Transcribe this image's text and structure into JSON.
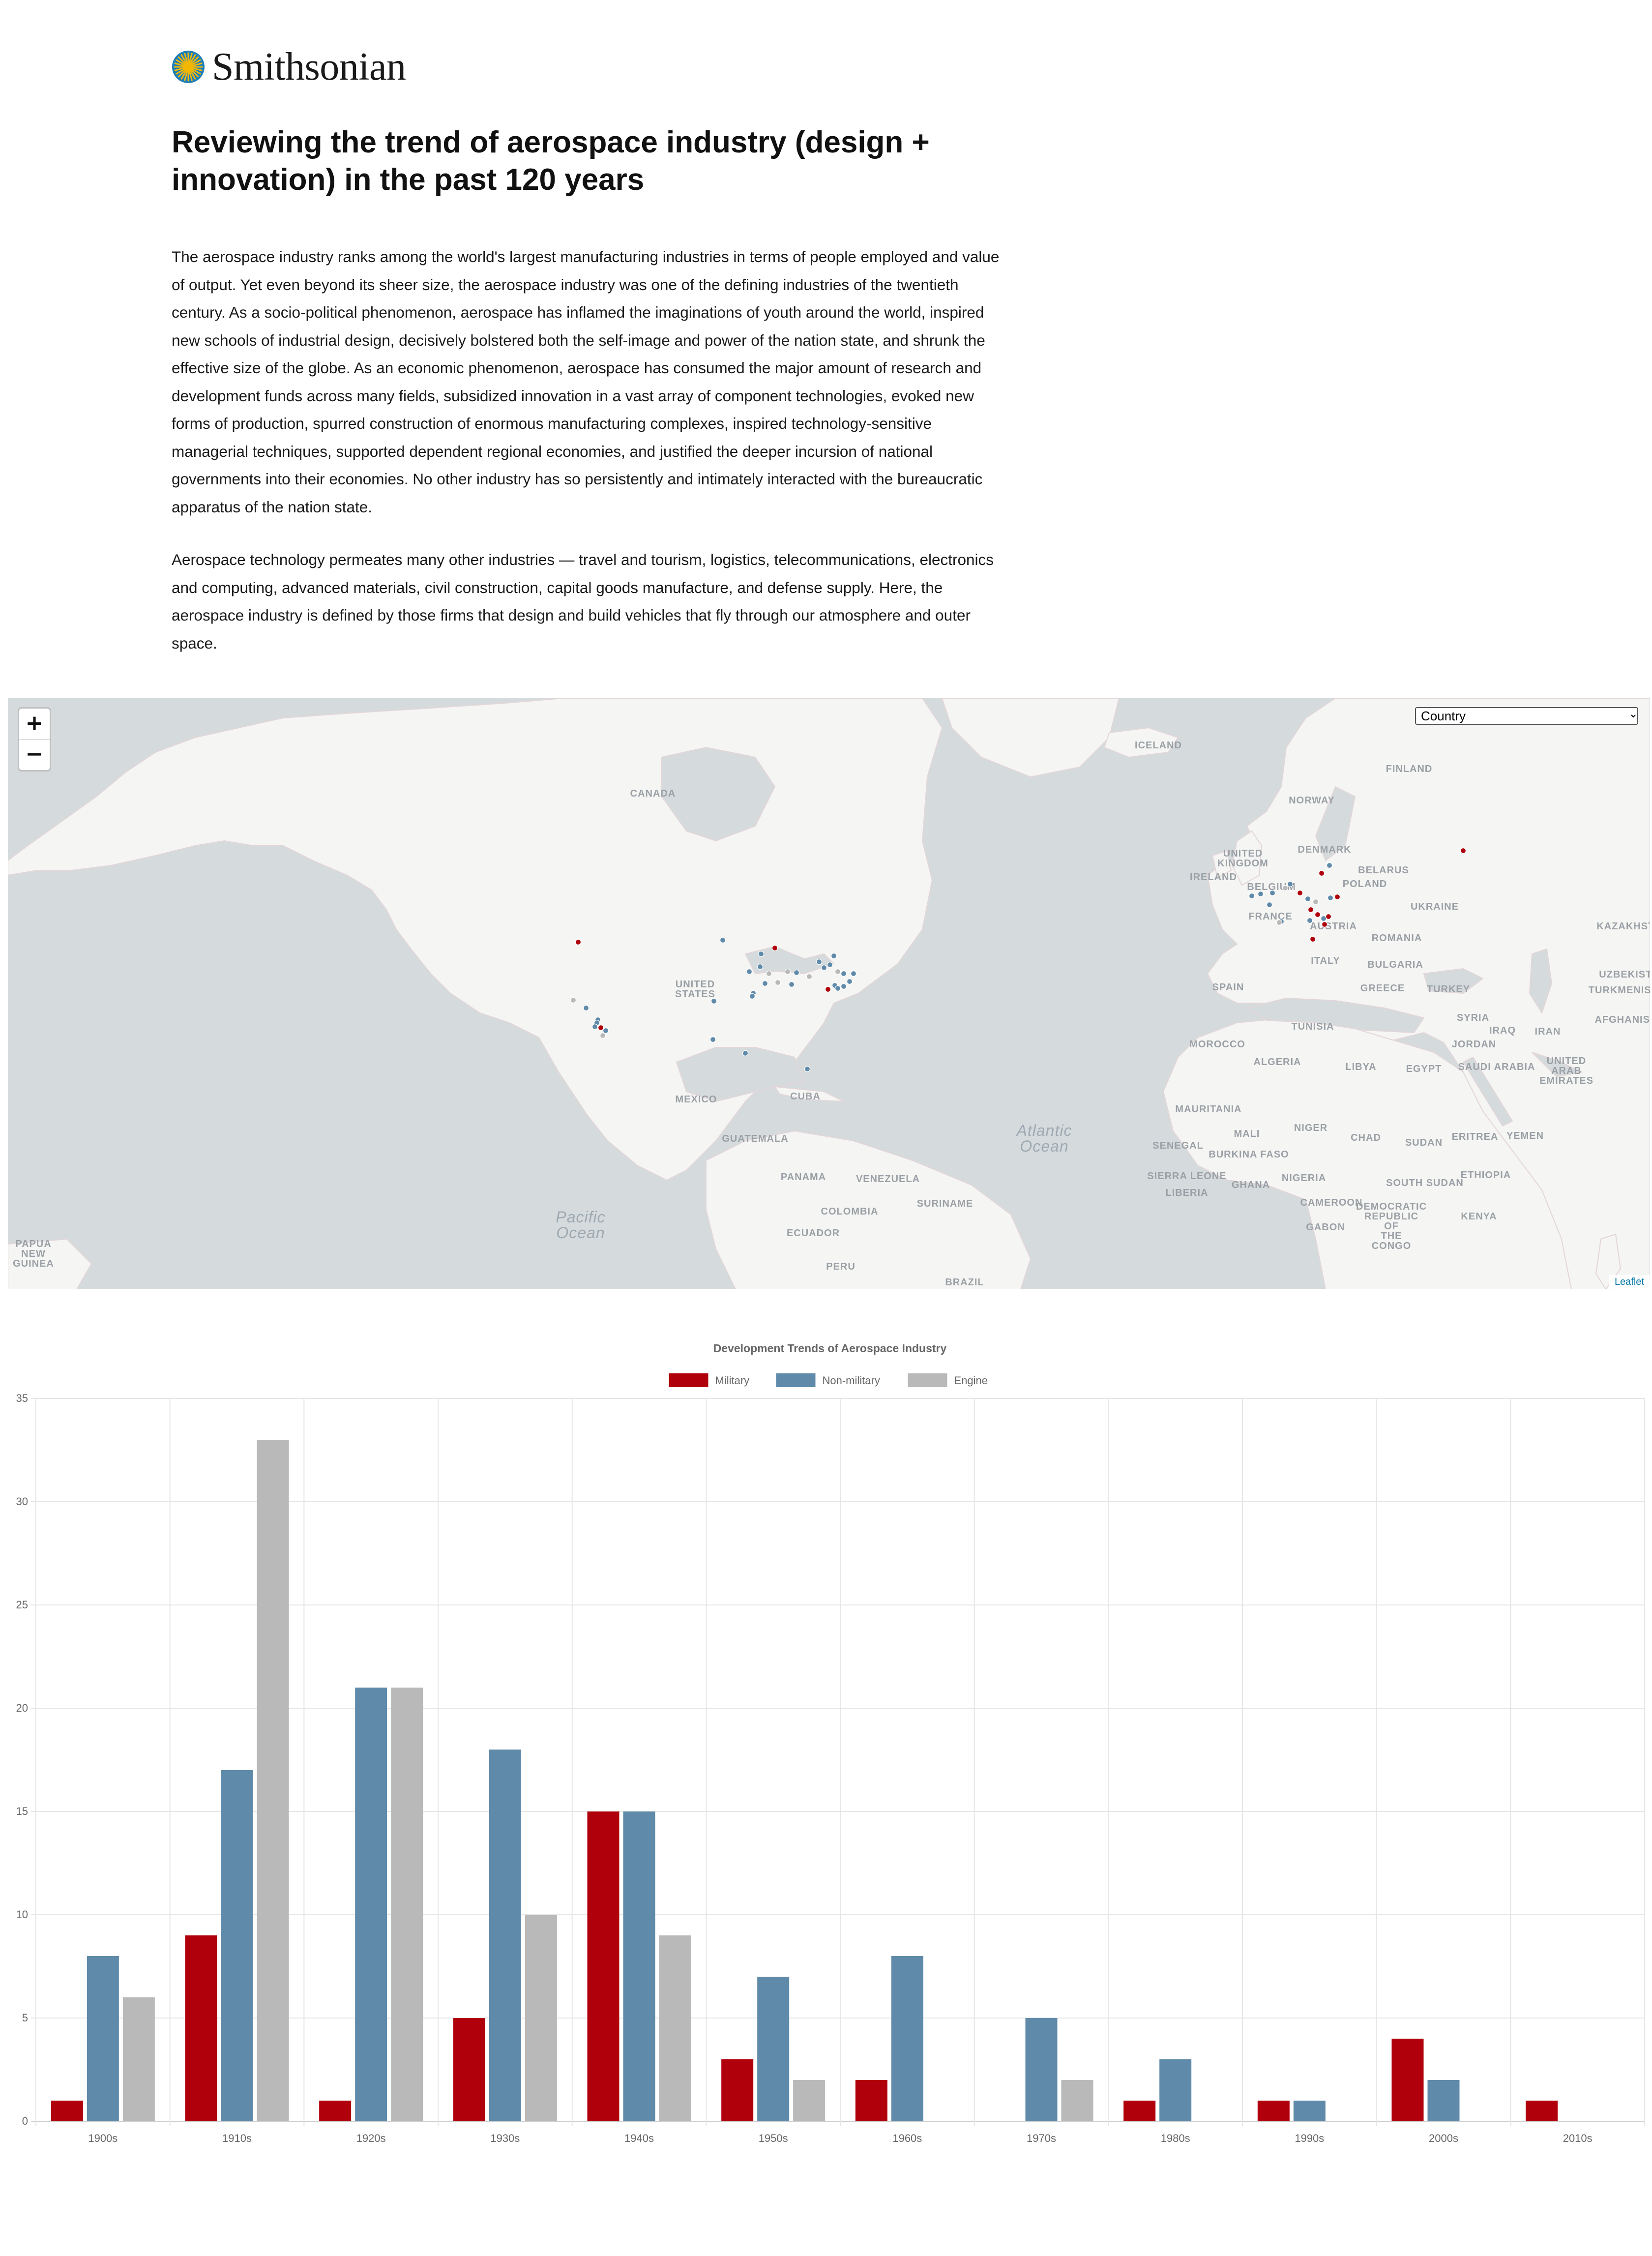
{
  "header": {
    "brand": "Smithsonian",
    "logo_icon": "sun-logo-icon",
    "logo_color": "#f2b705",
    "logo_ring": "#1e7fb8"
  },
  "article": {
    "title": "Reviewing the trend of aerospace industry (design + innovation) in the past 120 years",
    "paragraph1": "The aerospace industry ranks among the world's largest manufacturing industries in terms of people employed and value of output. Yet even beyond its sheer size, the aerospace industry was one of the defining industries of the twentieth century. As a socio-political phenomenon, aerospace has inflamed the imaginations of youth around the world, inspired new schools of industrial design, decisively bolstered both the self-image and power of the nation state, and shrunk the effective size of the globe. As an economic phenomenon, aerospace has consumed the major amount of research and development funds across many fields, subsidized innovation in a vast array of component technologies, evoked new forms of production, spurred construction of enormous manufacturing complexes, inspired technology-sensitive managerial techniques, supported dependent regional economies, and justified the deeper incursion of national governments into their economies. No other industry has so persistently and intimately interacted with the bureaucratic apparatus of the nation state.",
    "paragraph2": "Aerospace technology permeates many other industries — travel and tourism, logistics, telecommunications, electronics and computing, advanced materials, civil construction, capital goods manufacture, and defense supply. Here, the aerospace industry is defined by those firms that design and build vehicles that fly through our atmosphere and outer space."
  },
  "map": {
    "zoom_in": "+",
    "zoom_out": "−",
    "filter_selected": "Country",
    "attribution": "Leaflet",
    "labels": [
      "ICELAND",
      "FINLAND",
      "CANADA",
      "NORWAY",
      "UNITED KINGDOM",
      "DENMARK",
      "IRELAND",
      "BELARUS",
      "POLAND",
      "BELGIUM",
      "UKRAINE",
      "FRANCE",
      "AUSTRIA",
      "ROMANIA",
      "KAZAKHSTAN",
      "ITALY",
      "BULGARIA",
      "UNITED STATES",
      "SPAIN",
      "GREECE",
      "TURKEY",
      "UZBEKISTAN",
      "TURKMENISTAN",
      "SYRIA",
      "AFGHANISTAN",
      "TUNISIA",
      "IRAQ",
      "IRAN",
      "MOROCCO",
      "JORDAN",
      "ALGERIA",
      "LIBYA",
      "EGYPT",
      "SAUDI ARABIA",
      "UNITED ARAB EMIRATES",
      "MEXICO",
      "CUBA",
      "MAURITANIA",
      "MALI",
      "NIGER",
      "CHAD",
      "SUDAN",
      "ERITREA",
      "YEMEN",
      "GUATEMALA",
      "SENEGAL",
      "BURKINA FASO",
      "ETHIOPIA",
      "NIGERIA",
      "SOUTH SUDAN",
      "SIERRA LEONE",
      "GHANA",
      "LIBERIA",
      "PANAMA",
      "VENEZUELA",
      "SURINAME",
      "COLOMBIA",
      "CAMEROON",
      "KENYA",
      "GABON",
      "DEMOCRATIC REPUBLIC OF THE CONGO",
      "ECUADOR",
      "PERU",
      "BRAZIL",
      "PAPUA NEW GUINEA",
      "Atlantic Ocean",
      "Pacific Ocean"
    ],
    "marker_colors": {
      "military": "#b0000b",
      "non_military": "#5f8aa9",
      "engine": "#b9b9b9"
    }
  },
  "chart_data": {
    "type": "bar",
    "title": "Development Trends of Aerospace Industry",
    "categories": [
      "1900s",
      "1910s",
      "1920s",
      "1930s",
      "1940s",
      "1950s",
      "1960s",
      "1970s",
      "1980s",
      "1990s",
      "2000s",
      "2010s"
    ],
    "series": [
      {
        "name": "Military",
        "color": "#b0000b",
        "values": [
          1,
          9,
          1,
          5,
          15,
          3,
          2,
          0,
          1,
          1,
          4,
          1
        ]
      },
      {
        "name": "Non-military",
        "color": "#5f8aa9",
        "values": [
          8,
          17,
          21,
          18,
          15,
          7,
          8,
          5,
          3,
          1,
          2,
          0
        ]
      },
      {
        "name": "Engine",
        "color": "#b9b9b9",
        "values": [
          6,
          33,
          21,
          10,
          9,
          2,
          0,
          2,
          0,
          0,
          0,
          0
        ]
      }
    ],
    "ylim": [
      0,
      35
    ],
    "yticks": [
      0,
      5,
      10,
      15,
      20,
      25,
      30,
      35
    ],
    "grid": true,
    "legend": "top"
  }
}
